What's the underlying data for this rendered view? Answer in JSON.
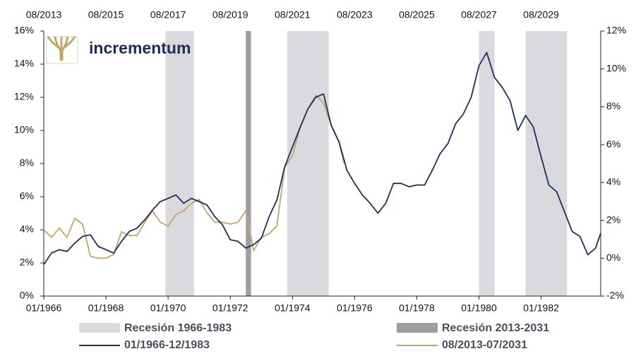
{
  "logo": "incrementum",
  "chart_data": {
    "type": "line",
    "xlim": [
      "01/1966",
      "12/1983"
    ],
    "xticks": [
      "01/1966",
      "01/1968",
      "01/1970",
      "01/1972",
      "01/1974",
      "01/1976",
      "01/1978",
      "01/1980",
      "01/1982"
    ],
    "x2lim": [
      "08/2013",
      "07/2031"
    ],
    "x2ticks": [
      "08/2013",
      "08/2015",
      "08/2017",
      "08/2019",
      "08/2021",
      "08/2023",
      "08/2025",
      "08/2027",
      "08/2029"
    ],
    "ylim": [
      0,
      16
    ],
    "yticks": [
      {
        "value": 0,
        "label": "0%"
      },
      {
        "value": 2,
        "label": "2%"
      },
      {
        "value": 4,
        "label": "4%"
      },
      {
        "value": 6,
        "label": "6%"
      },
      {
        "value": 8,
        "label": "8%"
      },
      {
        "value": 10,
        "label": "10%"
      },
      {
        "value": 12,
        "label": "12%"
      },
      {
        "value": 14,
        "label": "14%"
      },
      {
        "value": 16,
        "label": "16%"
      }
    ],
    "y2lim": [
      -2,
      12
    ],
    "y2ticks": [
      {
        "value": -2,
        "label": "-2%"
      },
      {
        "value": 0,
        "label": "0%"
      },
      {
        "value": 2,
        "label": "2%"
      },
      {
        "value": 4,
        "label": "4%"
      },
      {
        "value": 6,
        "label": "6%"
      },
      {
        "value": 8,
        "label": "8%"
      },
      {
        "value": 10,
        "label": "10%"
      },
      {
        "value": 12,
        "label": "12%"
      }
    ],
    "recessions": [
      {
        "name": "Recesión 1966-1983",
        "color": "#d9d9de",
        "axis": "x",
        "periods": [
          [
            "12/1969",
            "11/1970"
          ],
          [
            "11/1973",
            "03/1975"
          ],
          [
            "01/1980",
            "07/1980"
          ],
          [
            "07/1981",
            "11/1982"
          ]
        ]
      },
      {
        "name": "Recesión 2013-2031",
        "color": "#9e9ea2",
        "axis": "x2",
        "periods": [
          [
            "02/2020",
            "04/2020"
          ]
        ]
      }
    ],
    "series": [
      {
        "name": "01/1966-12/1983",
        "color": "#1f2d5a",
        "axis": "y",
        "x": [
          "01/1966",
          "04/1966",
          "07/1966",
          "10/1966",
          "01/1967",
          "04/1967",
          "07/1967",
          "10/1967",
          "01/1968",
          "04/1968",
          "07/1968",
          "10/1968",
          "01/1969",
          "04/1969",
          "07/1969",
          "10/1969",
          "01/1970",
          "04/1970",
          "07/1970",
          "10/1970",
          "01/1971",
          "04/1971",
          "07/1971",
          "10/1971",
          "01/1972",
          "04/1972",
          "07/1972",
          "10/1972",
          "01/1973",
          "04/1973",
          "07/1973",
          "10/1973",
          "01/1974",
          "04/1974",
          "07/1974",
          "10/1974",
          "01/1975",
          "04/1975",
          "07/1975",
          "10/1975",
          "01/1976",
          "04/1976",
          "07/1976",
          "10/1976",
          "01/1977",
          "04/1977",
          "07/1977",
          "10/1977",
          "01/1978",
          "04/1978",
          "07/1978",
          "10/1978",
          "01/1979",
          "04/1979",
          "07/1979",
          "10/1979",
          "01/1980",
          "04/1980",
          "07/1980",
          "10/1980",
          "01/1981",
          "04/1981",
          "07/1981",
          "10/1981",
          "01/1982",
          "04/1982",
          "07/1982",
          "10/1982",
          "01/1983",
          "04/1983",
          "07/1983",
          "10/1983",
          "12/1983"
        ],
        "values": [
          1.9,
          2.6,
          2.8,
          2.7,
          3.2,
          3.6,
          3.7,
          3.0,
          2.8,
          2.6,
          3.3,
          3.9,
          4.1,
          4.6,
          5.2,
          5.7,
          5.9,
          6.1,
          5.6,
          5.9,
          5.7,
          5.5,
          4.8,
          4.3,
          3.4,
          3.3,
          2.9,
          3.1,
          3.5,
          4.8,
          5.8,
          7.8,
          9.0,
          10.2,
          11.3,
          12.0,
          12.2,
          10.3,
          9.3,
          7.6,
          6.8,
          6.1,
          5.6,
          5.0,
          5.6,
          6.8,
          6.8,
          6.6,
          6.7,
          6.7,
          7.6,
          8.6,
          9.2,
          10.4,
          11.0,
          12.0,
          13.9,
          14.7,
          13.2,
          12.6,
          11.8,
          10.0,
          10.9,
          10.2,
          8.4,
          6.7,
          6.3,
          5.1,
          3.9,
          3.6,
          2.5,
          2.9,
          3.8
        ]
      },
      {
        "name": "08/2013-07/2031",
        "color": "#c4a467",
        "axis": "y2",
        "x": [
          "08/2013",
          "11/2013",
          "02/2014",
          "05/2014",
          "08/2014",
          "11/2014",
          "02/2015",
          "05/2015",
          "08/2015",
          "11/2015",
          "02/2016",
          "05/2016",
          "08/2016",
          "11/2016",
          "02/2017",
          "05/2017",
          "08/2017",
          "11/2017",
          "02/2018",
          "05/2018",
          "08/2018",
          "11/2018",
          "02/2019",
          "05/2019",
          "08/2019",
          "11/2019",
          "02/2020",
          "05/2020",
          "08/2020",
          "11/2020",
          "02/2021",
          "05/2021",
          "08/2021",
          "11/2021",
          "02/2022",
          "05/2022",
          "08/2022",
          "11/2022",
          "02/2023",
          "04/2023"
        ],
        "values": [
          1.5,
          1.1,
          1.6,
          1.1,
          2.1,
          1.8,
          0.1,
          0.0,
          0.0,
          0.2,
          1.4,
          1.2,
          1.2,
          1.9,
          2.5,
          1.9,
          1.7,
          2.3,
          2.5,
          2.9,
          3.1,
          2.4,
          1.9,
          1.9,
          1.8,
          1.9,
          2.5,
          0.4,
          1.1,
          1.3,
          1.7,
          4.8,
          5.4,
          6.9,
          7.9,
          8.6,
          8.2,
          7.0,
          6.1,
          5.0
        ]
      }
    ]
  }
}
